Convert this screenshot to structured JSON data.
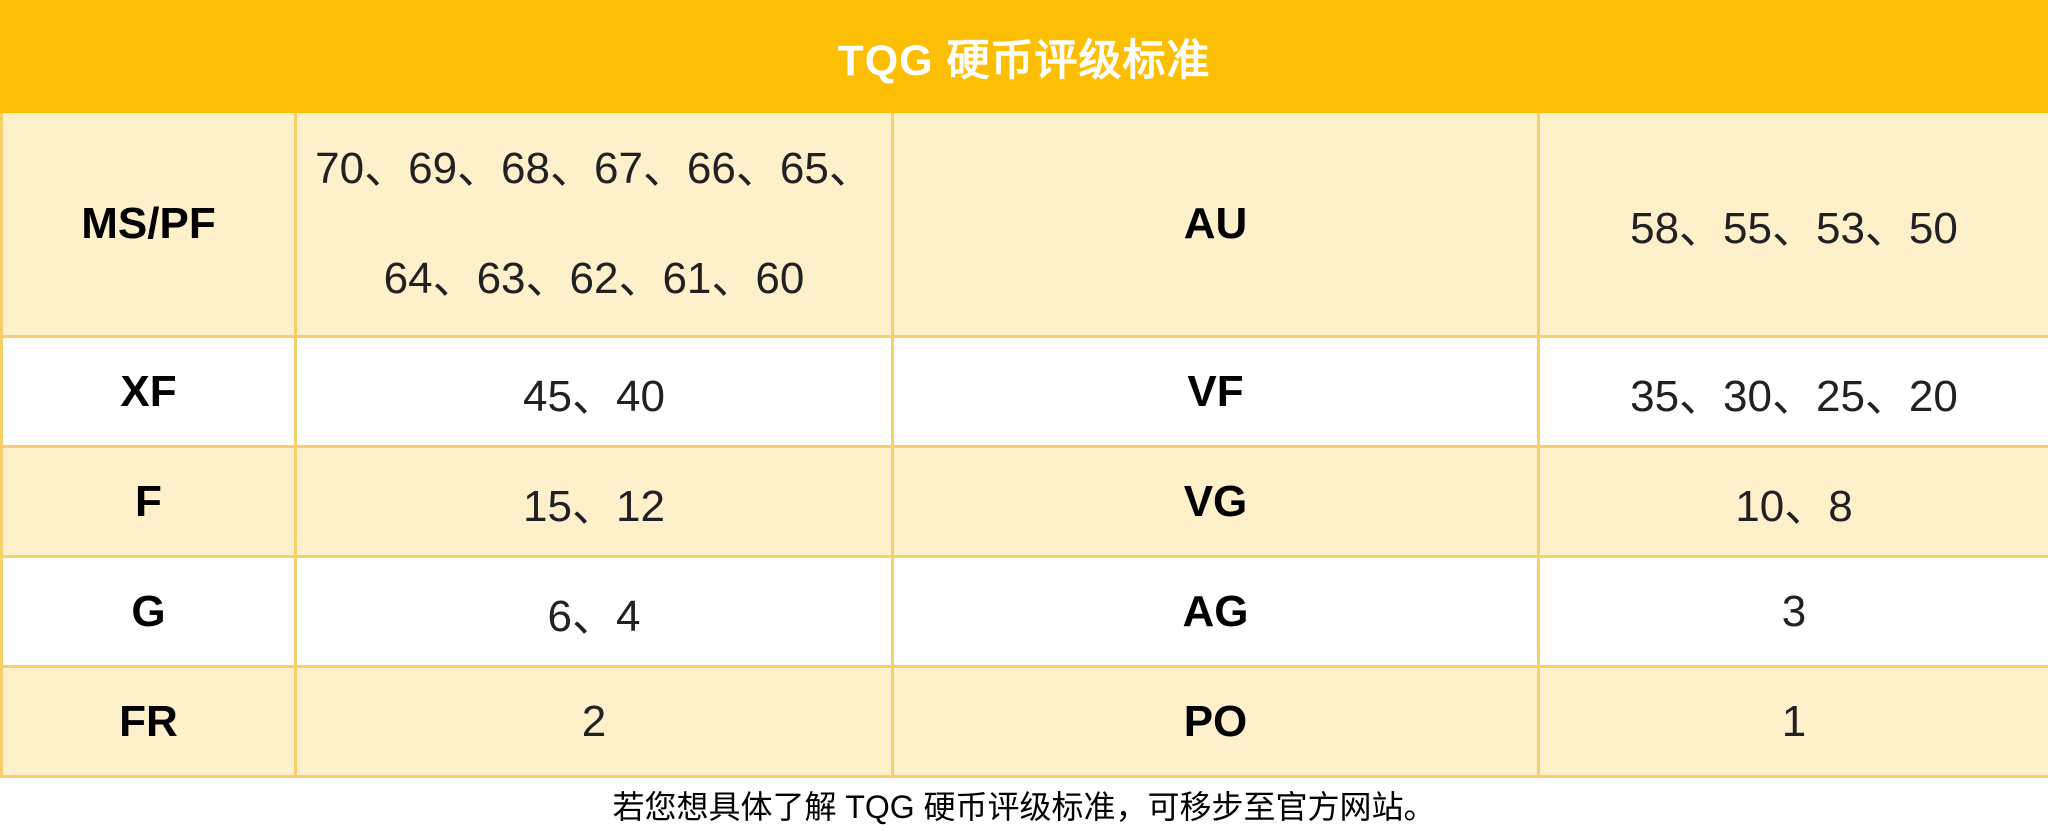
{
  "header": {
    "title": "TQG 硬币评级标准"
  },
  "table": {
    "rows": [
      {
        "label1": "MS/PF",
        "value1_line1": "70、69、68、67、66、65、",
        "value1_line2": "64、63、62、61、60",
        "label2": "AU",
        "value2": "58、55、53、50"
      },
      {
        "label1": "XF",
        "value1": "45、40",
        "label2": "VF",
        "value2": "35、30、25、20"
      },
      {
        "label1": "F",
        "value1": "15、12",
        "label2": "VG",
        "value2": "10、8"
      },
      {
        "label1": "G",
        "value1": "6、4",
        "label2": "AG",
        "value2": "3"
      },
      {
        "label1": "FR",
        "value1": "2",
        "label2": "PO",
        "value2": "1"
      }
    ]
  },
  "footer": {
    "note": "若您想具体了解 TQG 硬币评级标准，可移步至官方网站。"
  },
  "colors": {
    "header_bg": "#FCBF04",
    "row_cream": "#FDF0CA",
    "row_white": "#FFFFFF",
    "border_gold": "#F6D06A",
    "title_text": "#FFFFFF",
    "body_text": "#212121"
  }
}
